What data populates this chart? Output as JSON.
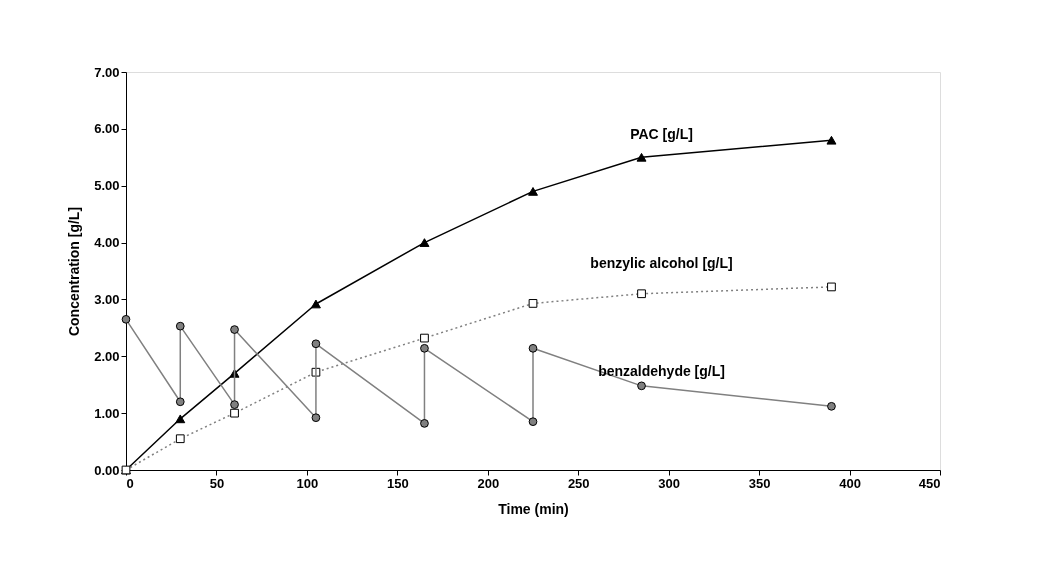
{
  "chart_data": {
    "type": "line",
    "xlabel": "Time (min)",
    "ylabel": "Concentration [g/L]",
    "xlim": [
      0,
      450
    ],
    "xticks": [
      0,
      50,
      100,
      150,
      200,
      250,
      300,
      350,
      400,
      450
    ],
    "ylim": [
      0,
      7
    ],
    "yticks": [
      {
        "value": 0,
        "label": "0.00"
      },
      {
        "value": 1,
        "label": "1.00"
      },
      {
        "value": 2,
        "label": "2.00"
      },
      {
        "value": 3,
        "label": "3.00"
      },
      {
        "value": 4,
        "label": "4.00"
      },
      {
        "value": 5,
        "label": "5.00"
      },
      {
        "value": 6,
        "label": "6.00"
      },
      {
        "value": 7,
        "label": "7.00"
      }
    ],
    "grid": false,
    "series": [
      {
        "name": "PAC [g/L]",
        "color": "#000000",
        "marker": "triangle",
        "line_style": "solid",
        "x": [
          0,
          30,
          60,
          105,
          165,
          225,
          285,
          390
        ],
        "values": [
          0,
          0.9,
          1.7,
          2.92,
          4.0,
          4.9,
          5.5,
          5.8
        ]
      },
      {
        "name": "benzylic alcohol [g/L]",
        "color": "#808080",
        "marker": "square",
        "line_style": "dotted",
        "x": [
          0,
          30,
          60,
          105,
          165,
          225,
          285,
          390
        ],
        "values": [
          0,
          0.55,
          1.0,
          1.72,
          2.32,
          2.93,
          3.1,
          3.22
        ]
      },
      {
        "name": "benzaldehyde [g/L]",
        "color": "#808080",
        "marker": "circle",
        "line_style": "solid",
        "x": [
          0,
          30,
          30,
          60,
          60,
          105,
          105,
          165,
          165,
          225,
          225,
          285,
          390
        ],
        "values": [
          2.65,
          1.2,
          2.53,
          1.15,
          2.47,
          0.92,
          2.22,
          0.82,
          2.14,
          0.85,
          2.14,
          1.48,
          1.12
        ]
      }
    ]
  }
}
